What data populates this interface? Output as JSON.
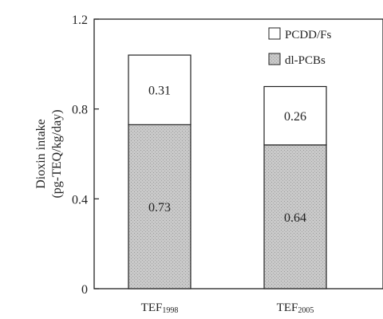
{
  "chart_data": {
    "type": "bar",
    "stacked": true,
    "ylabel_lines": [
      "Dioxin intake",
      "(pg-TEQ/kg/day)"
    ],
    "ylim": [
      0,
      1.2
    ],
    "yticks": [
      "0",
      "0.4",
      "0.8",
      "1.2"
    ],
    "ytick_values": [
      0,
      0.4,
      0.8,
      1.2
    ],
    "categories": [
      {
        "main": "TEF",
        "sub": "1998"
      },
      {
        "main": "TEF",
        "sub": "2005"
      }
    ],
    "series": [
      {
        "name": "dl-PCBs",
        "values": [
          0.73,
          0.64
        ],
        "labels": [
          "0.73",
          "0.64"
        ],
        "color": "#c4c4c4"
      },
      {
        "name": "PCDD/Fs",
        "values": [
          0.31,
          0.26
        ],
        "labels": [
          "0.31",
          "0.26"
        ],
        "color": "#ffffff"
      }
    ],
    "legend_order": [
      "PCDD/Fs",
      "dl-PCBs"
    ],
    "legend_position": "top-right",
    "grid": false
  }
}
